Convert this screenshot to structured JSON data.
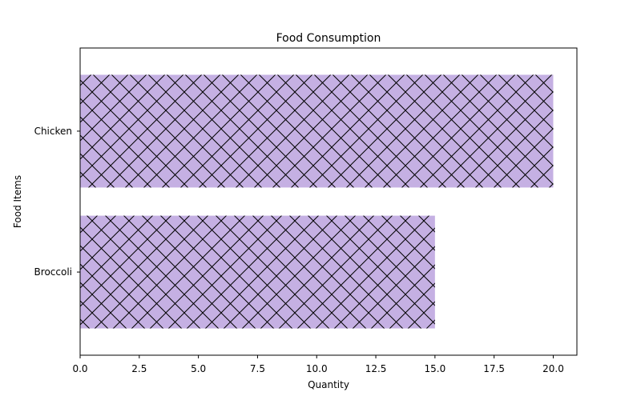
{
  "chart_data": {
    "type": "bar",
    "orientation": "horizontal",
    "title": "Food Consumption",
    "xlabel": "Quantity",
    "ylabel": "Food Items",
    "categories": [
      "Broccoli",
      "Chicken"
    ],
    "values": [
      15,
      20
    ],
    "xlim": [
      0,
      21
    ],
    "xticks": [
      "0.0",
      "2.5",
      "5.0",
      "7.5",
      "10.0",
      "12.5",
      "15.0",
      "17.5",
      "20.0"
    ],
    "bar_color": "#c5b0e3",
    "hatch": "crosshatch",
    "hatch_color": "#000000",
    "grid": false,
    "legend": "none"
  }
}
